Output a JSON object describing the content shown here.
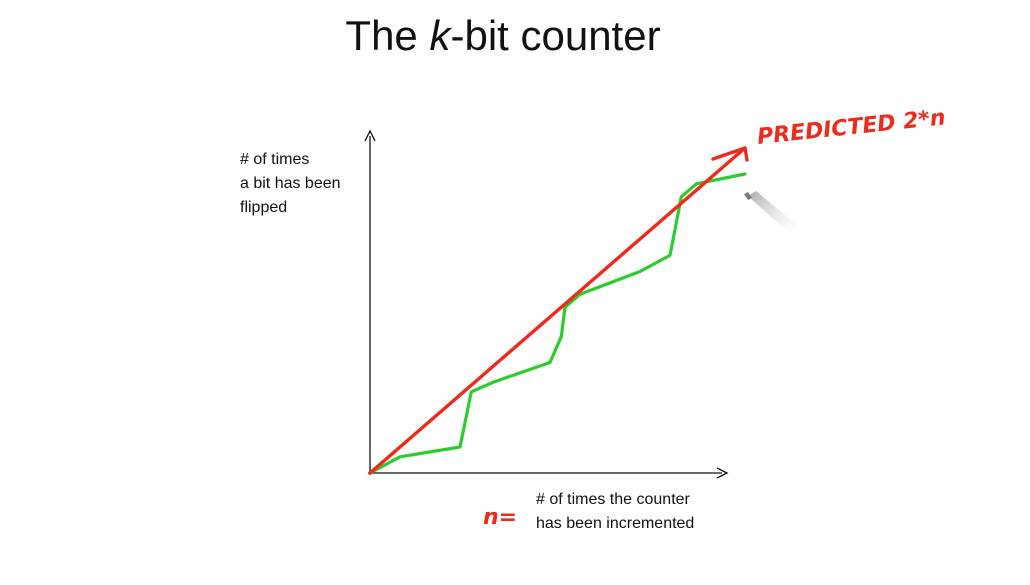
{
  "slide": {
    "title_prefix": "The ",
    "title_var": "k",
    "title_suffix": "-bit counter"
  },
  "chart_data": {
    "type": "line",
    "title": "The k-bit counter",
    "ylabel_lines": [
      "# of times",
      "a bit has been",
      "flipped"
    ],
    "xlabel_lines": [
      "# of times the counter",
      "has been incremented"
    ],
    "x_handwritten_var": "n=",
    "grid": false,
    "series": [
      {
        "name": "PREDICTED 2*n",
        "color": "#ee2a1b",
        "x": [
          0,
          1
        ],
        "y": [
          0,
          1
        ]
      },
      {
        "color": "#2dcc2d",
        "x": [
          0,
          0.08,
          0.24,
          0.27,
          0.33,
          0.48,
          0.51,
          0.52,
          0.56,
          0.72,
          0.8,
          0.83,
          0.87,
          1.0
        ],
        "y": [
          0,
          0.05,
          0.08,
          0.25,
          0.28,
          0.34,
          0.42,
          0.51,
          0.55,
          0.62,
          0.67,
          0.85,
          0.89,
          0.92
        ]
      }
    ]
  },
  "colors": {
    "axis": "#111111",
    "prediction": "#ee2a1b",
    "actual": "#2dcc2d"
  }
}
